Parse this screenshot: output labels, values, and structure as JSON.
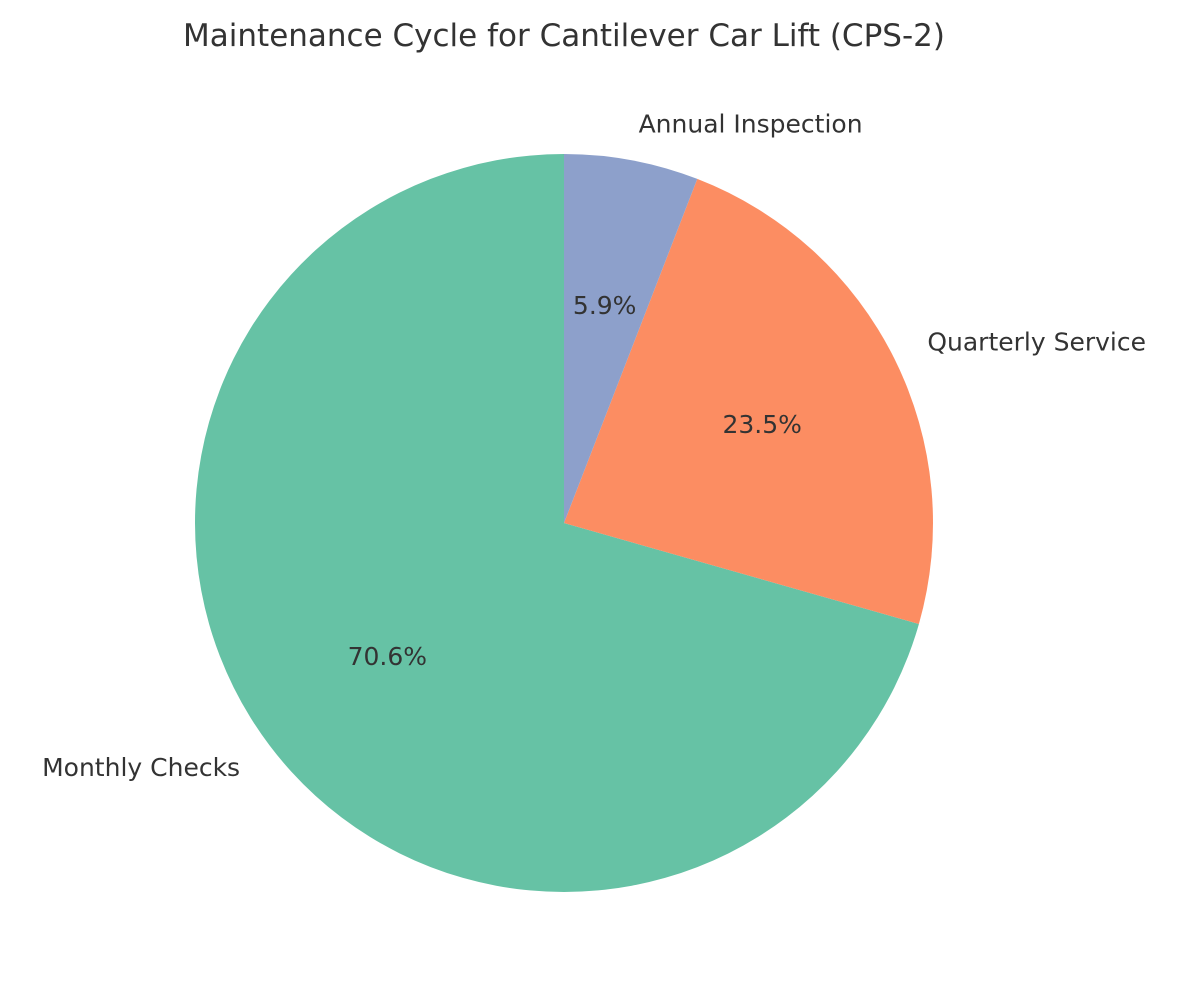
{
  "chart_data": {
    "type": "pie",
    "title": "Maintenance Cycle for Cantilever Car Lift (CPS-2)",
    "start_angle_deg": 90,
    "counterclockwise": true,
    "slices": [
      {
        "label": "Monthly Checks",
        "value": 12,
        "pct_label": "70.6%",
        "color": "#66c2a5"
      },
      {
        "label": "Quarterly Service",
        "value": 4,
        "pct_label": "23.5%",
        "color": "#fc8d62"
      },
      {
        "label": "Annual Inspection",
        "value": 1,
        "pct_label": "5.9%",
        "color": "#8da0cb"
      }
    ]
  }
}
